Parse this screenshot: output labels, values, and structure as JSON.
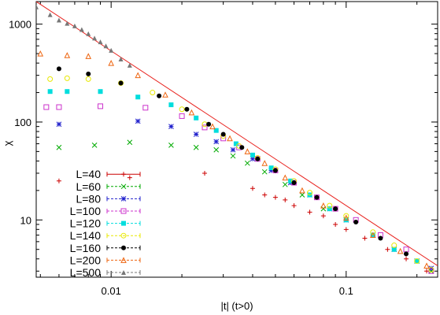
{
  "chart_data": {
    "type": "scatter",
    "xlabel": "|t| (t>0)",
    "ylabel": "χ",
    "xscale": "log",
    "yscale": "log",
    "xlim": [
      0.0048,
      0.245
    ],
    "ylim": [
      2.6,
      1700
    ],
    "grid": false,
    "legend_position": "bottom-left",
    "x_ticks": [
      {
        "value": 0.01,
        "label": "0.01"
      },
      {
        "value": 0.1,
        "label": "0.1"
      }
    ],
    "y_ticks": [
      {
        "value": 10,
        "label": "10"
      },
      {
        "value": 100,
        "label": "100"
      },
      {
        "value": 1000,
        "label": "1000"
      }
    ],
    "fit_line": {
      "color": "#e8201c",
      "points": [
        [
          0.0048,
          1700
        ],
        [
          0.245,
          3.4
        ]
      ]
    },
    "series": [
      {
        "name": "L=40",
        "color": "#cc0000",
        "marker": "plus",
        "x": [
          0.006,
          0.012,
          0.025,
          0.04,
          0.045,
          0.05,
          0.055,
          0.06,
          0.07,
          0.08,
          0.09,
          0.1,
          0.12,
          0.15,
          0.18,
          0.22
        ],
        "y": [
          25,
          27,
          30,
          21,
          18,
          17,
          16,
          14,
          12,
          11,
          9,
          8,
          6.5,
          5,
          4,
          3
        ]
      },
      {
        "name": "L=60",
        "color": "#00aa00",
        "marker": "x",
        "x": [
          0.006,
          0.0085,
          0.012,
          0.018,
          0.023,
          0.028,
          0.033,
          0.038,
          0.045,
          0.055,
          0.065,
          0.08,
          0.1,
          0.13,
          0.16,
          0.2,
          0.23
        ],
        "y": [
          55,
          58,
          62,
          58,
          55,
          52,
          45,
          38,
          31,
          23,
          18,
          13,
          10,
          7,
          5,
          3.8,
          3
        ]
      },
      {
        "name": "L=80",
        "color": "#2020cc",
        "marker": "star",
        "x": [
          0.006,
          0.013,
          0.018,
          0.023,
          0.028,
          0.033,
          0.04,
          0.048,
          0.058,
          0.07,
          0.085,
          0.1,
          0.13,
          0.16,
          0.2,
          0.23
        ],
        "y": [
          95,
          102,
          90,
          75,
          63,
          52,
          42,
          32,
          24,
          18,
          13,
          10,
          7,
          5,
          3.8,
          3.2
        ]
      },
      {
        "name": "L=100",
        "color": "#cc33cc",
        "marker": "square",
        "x": [
          0.0053,
          0.006,
          0.009,
          0.014,
          0.02,
          0.025,
          0.03,
          0.035,
          0.042,
          0.05,
          0.06,
          0.075,
          0.09,
          0.11,
          0.14,
          0.18,
          0.23
        ],
        "y": [
          142,
          142,
          145,
          140,
          115,
          88,
          68,
          55,
          42,
          32,
          24,
          17,
          13,
          10,
          7,
          5,
          3
        ]
      },
      {
        "name": "L=120",
        "color": "#00dddd",
        "marker": "filled-square",
        "x": [
          0.0055,
          0.0065,
          0.009,
          0.013,
          0.018,
          0.023,
          0.028,
          0.034,
          0.04,
          0.048,
          0.058,
          0.07,
          0.085,
          0.1,
          0.13,
          0.16,
          0.2
        ],
        "y": [
          205,
          205,
          205,
          180,
          150,
          110,
          82,
          60,
          46,
          34,
          25,
          18,
          13,
          10,
          7,
          5,
          3.8
        ]
      },
      {
        "name": "L=140",
        "color": "#e8e800",
        "marker": "circle",
        "x": [
          0.0055,
          0.0065,
          0.008,
          0.011,
          0.015,
          0.02,
          0.025,
          0.03,
          0.035,
          0.042,
          0.05,
          0.06,
          0.07,
          0.085,
          0.1,
          0.13,
          0.16,
          0.2,
          0.23
        ],
        "y": [
          275,
          280,
          275,
          250,
          200,
          135,
          95,
          72,
          57,
          43,
          33,
          25,
          19,
          14,
          11,
          7.5,
          5.5,
          3.8,
          3.1
        ]
      },
      {
        "name": "L=160",
        "color": "#000000",
        "marker": "filled-circle",
        "x": [
          0.006,
          0.008,
          0.011,
          0.016,
          0.021,
          0.026,
          0.03,
          0.036,
          0.042,
          0.05,
          0.06,
          0.075,
          0.09,
          0.11,
          0.14,
          0.18
        ],
        "y": [
          350,
          310,
          250,
          185,
          135,
          95,
          75,
          55,
          42,
          32,
          24,
          17,
          13,
          9.5,
          6.5,
          4.5
        ]
      },
      {
        "name": "L=200",
        "color": "#ee6611",
        "marker": "triangle",
        "x": [
          0.005,
          0.0065,
          0.008,
          0.01,
          0.013,
          0.017,
          0.022,
          0.027,
          0.032,
          0.038,
          0.045,
          0.055,
          0.065,
          0.08,
          0.1,
          0.13,
          0.17,
          0.22
        ],
        "y": [
          500,
          480,
          470,
          400,
          300,
          190,
          125,
          90,
          68,
          50,
          38,
          27,
          20,
          14,
          10.5,
          7,
          4.8,
          3.4
        ]
      },
      {
        "name": "L=500",
        "color": "#777777",
        "marker": "filled-triangle",
        "x": [
          0.0048,
          0.0055,
          0.006,
          0.0065,
          0.007,
          0.0075,
          0.008,
          0.0085,
          0.009,
          0.0095,
          0.01,
          0.011,
          0.012
        ],
        "y": [
          1500,
          1250,
          1100,
          1020,
          960,
          880,
          800,
          720,
          660,
          600,
          540,
          440,
          380
        ]
      }
    ]
  }
}
